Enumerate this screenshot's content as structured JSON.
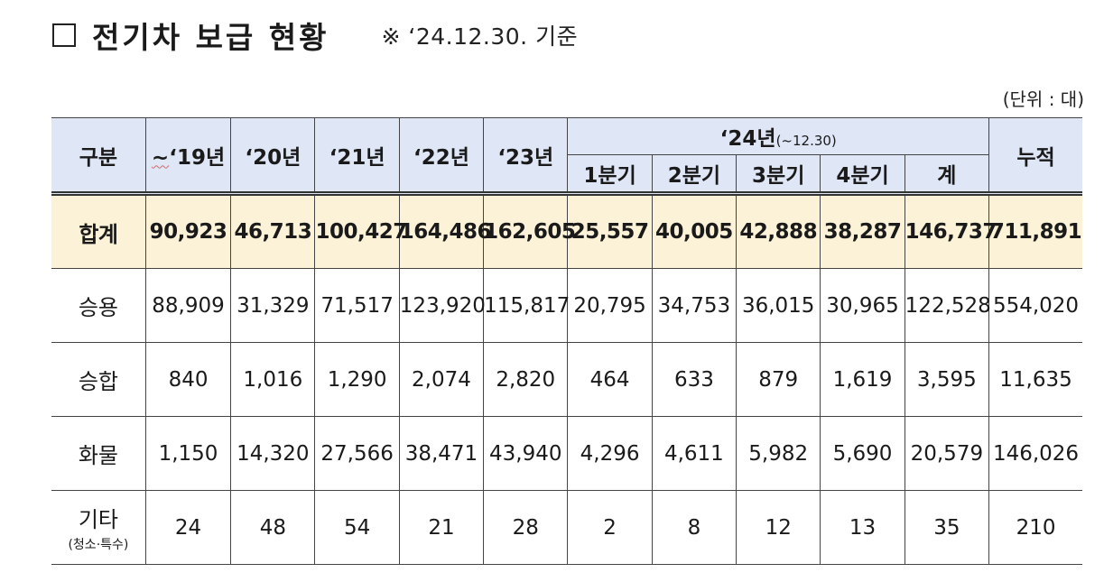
{
  "title": {
    "text": "전기차 보급 현황",
    "note": "※ ‘24.12.30. 기준"
  },
  "unit": "(단위 : 대)",
  "table": {
    "header": {
      "category": "구분",
      "y19_prefix": "~",
      "y19_rest": "‘19년",
      "y20": "‘20년",
      "y21": "‘21년",
      "y22": "‘22년",
      "y23": "‘23년",
      "y24_main": "‘24년",
      "y24_paren": "(~12.30)",
      "q1": "1분기",
      "q2": "2분기",
      "q3": "3분기",
      "q4": "4분기",
      "sum": "계",
      "cumulative": "누적"
    },
    "rows": [
      {
        "label": "합계",
        "values": [
          "90,923",
          "46,713",
          "100,427",
          "164,486",
          "162,605",
          "25,557",
          "40,005",
          "42,888",
          "38,287",
          "146,737",
          "711,891"
        ]
      },
      {
        "label": "승용",
        "values": [
          "88,909",
          "31,329",
          "71,517",
          "123,920",
          "115,817",
          "20,795",
          "34,753",
          "36,015",
          "30,965",
          "122,528",
          "554,020"
        ]
      },
      {
        "label": "승합",
        "values": [
          "840",
          "1,016",
          "1,290",
          "2,074",
          "2,820",
          "464",
          "633",
          "879",
          "1,619",
          "3,595",
          "11,635"
        ]
      },
      {
        "label": "화물",
        "values": [
          "1,150",
          "14,320",
          "27,566",
          "38,471",
          "43,940",
          "4,296",
          "4,611",
          "5,982",
          "5,690",
          "20,579",
          "146,026"
        ]
      },
      {
        "label": "기타",
        "sublabel": "(청소·특수)",
        "values": [
          "24",
          "48",
          "54",
          "21",
          "28",
          "2",
          "8",
          "12",
          "13",
          "35",
          "210"
        ]
      }
    ]
  }
}
